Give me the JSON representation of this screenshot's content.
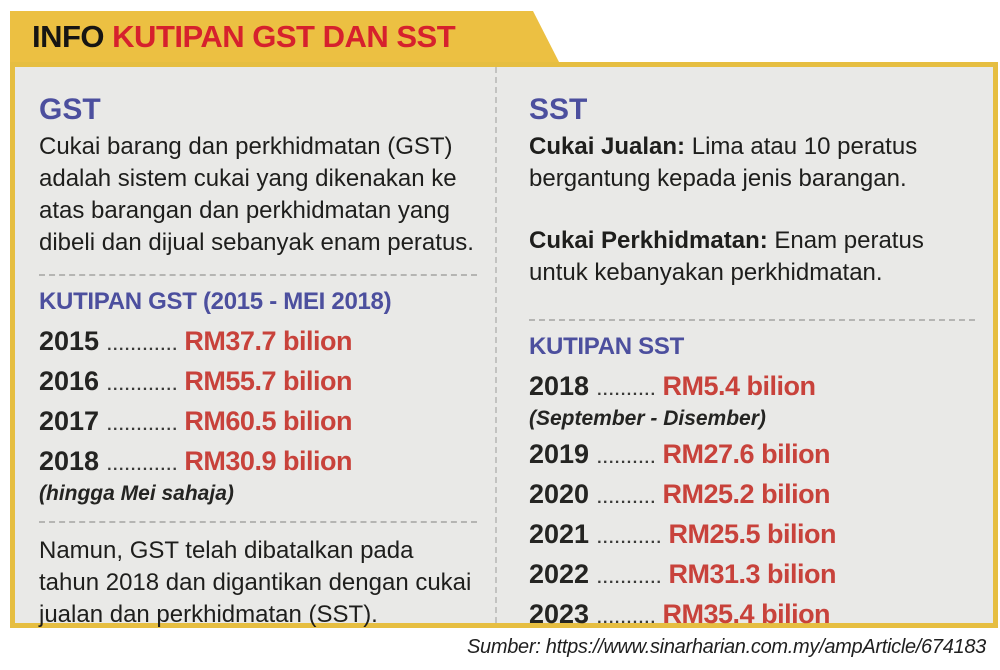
{
  "header": {
    "title_prefix": "INFO ",
    "title_main": "KUTIPAN GST DAN SST"
  },
  "colors": {
    "tab_yellow": "#ecc042",
    "border_yellow": "#e6be41",
    "title_red": "#d6212d",
    "heading_blue": "#4c4f9e",
    "value_red": "#c8423b",
    "panel_bg": "#e9e9e7",
    "text_dark": "#1e1e1c"
  },
  "gst": {
    "heading": "GST",
    "description": "Cukai barang dan perkhidmatan (GST) adalah sistem cukai yang dikenakan ke atas barangan dan perkhidmatan yang dibeli dan dijual sebanyak enam peratus.",
    "collection_title": "KUTIPAN GST (2015 - MEI 2018)",
    "rows": [
      {
        "year": "2015",
        "dots": "............",
        "value": "RM37.7 bilion"
      },
      {
        "year": "2016",
        "dots": "............",
        "value": "RM55.7 bilion"
      },
      {
        "year": "2017",
        "dots": "............",
        "value": "RM60.5 bilion"
      },
      {
        "year": "2018",
        "dots": "............",
        "value": "RM30.9 bilion"
      }
    ],
    "footnote": "(hingga Mei sahaja)",
    "conclusion": "Namun, GST telah dibatalkan pada tahun 2018 dan digantikan dengan cukai jualan dan perkhidmatan (SST)."
  },
  "sst": {
    "heading": "SST",
    "sales_tax_label": "Cukai Jualan:",
    "sales_tax_text": " Lima atau 10 peratus bergantung kepada jenis barangan.",
    "service_tax_label": "Cukai Perkhidmatan:",
    "service_tax_text": " Enam peratus untuk kebanyakan perkhidmatan.",
    "collection_title": "KUTIPAN SST",
    "rows": [
      {
        "year": "2018",
        "dots": "..........",
        "value": "RM5.4 bilion"
      },
      {
        "year": "2019",
        "dots": "..........",
        "value": "RM27.6 bilion"
      },
      {
        "year": "2020",
        "dots": "..........",
        "value": "RM25.2 bilion"
      },
      {
        "year": "2021",
        "dots": "...........",
        "value": "RM25.5 bilion"
      },
      {
        "year": "2022",
        "dots": "...........",
        "value": "RM31.3 bilion"
      },
      {
        "year": "2023",
        "dots": "..........",
        "value": "RM35.4 bilion"
      }
    ],
    "footnote_2018": "(September - Disember)"
  },
  "footer": {
    "source": "Sumber: https://www.sinarharian.com.my/ampArticle/674183"
  },
  "chart_data": {
    "type": "table",
    "title": "KUTIPAN GST DAN SST",
    "series": [
      {
        "name": "Kutipan GST (RM bilion)",
        "categories": [
          "2015",
          "2016",
          "2017",
          "2018"
        ],
        "values": [
          37.7,
          55.7,
          60.5,
          30.9
        ]
      },
      {
        "name": "Kutipan SST (RM bilion)",
        "categories": [
          "2018",
          "2019",
          "2020",
          "2021",
          "2022",
          "2023"
        ],
        "values": [
          5.4,
          27.6,
          25.2,
          25.5,
          31.3,
          35.4
        ]
      }
    ]
  }
}
